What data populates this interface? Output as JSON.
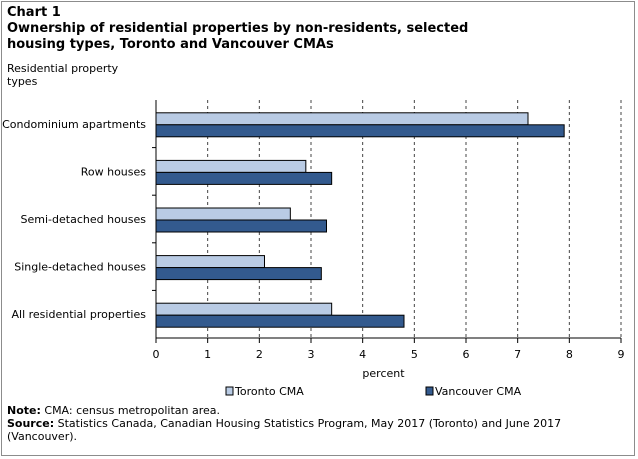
{
  "header": {
    "chart_label": "Chart 1",
    "title": "Ownership of residential properties by non-residents, selected housing types, Toronto and Vancouver CMAs"
  },
  "colors": {
    "toronto": "#b9cbe4",
    "vancouver": "#335a8e",
    "grid": "#444444",
    "axis": "#000000"
  },
  "chart_data": {
    "type": "bar",
    "orientation": "horizontal",
    "title": "Ownership of residential properties by non-residents, selected housing types, Toronto and Vancouver CMAs",
    "ylabel": "Residential property types",
    "xlabel": "percent",
    "xlim": [
      0,
      9
    ],
    "x_ticks": [
      0,
      1,
      2,
      3,
      4,
      5,
      6,
      7,
      8,
      9
    ],
    "grid": "vertical dashed",
    "legend_position": "bottom",
    "categories": [
      "Condominium apartments",
      "Row houses",
      "Semi-detached houses",
      "Single-detached houses",
      "All residential properties"
    ],
    "series": [
      {
        "name": "Toronto CMA",
        "color": "#b9cbe4",
        "values": [
          7.2,
          2.9,
          2.6,
          2.1,
          3.4
        ]
      },
      {
        "name": "Vancouver CMA",
        "color": "#335a8e",
        "values": [
          7.9,
          3.4,
          3.3,
          3.2,
          4.8
        ]
      }
    ]
  },
  "notes": {
    "note_label": "Note:",
    "note_text": "CMA: census metropolitan area.",
    "source_label": "Source:",
    "source_text": "Statistics Canada, Canadian Housing Statistics Program, May 2017 (Toronto) and June 2017 (Vancouver)."
  }
}
